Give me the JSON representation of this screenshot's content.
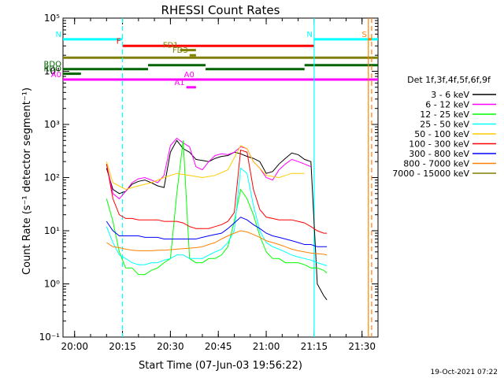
{
  "chart_data": {
    "type": "line",
    "title": "RHESSI Count Rates",
    "xlabel": "Start Time (07-Jun-03 19:56:22)",
    "ylabel": "Count Rate (s⁻¹ detector segment⁻¹)",
    "yscale": "log",
    "xlim": [
      "19:56:22",
      "21:35:00"
    ],
    "ylim": [
      0.1,
      100000
    ],
    "x_ticks": [
      "20:00",
      "20:15",
      "20:30",
      "20:45",
      "21:00",
      "21:15",
      "21:30"
    ],
    "y_ticks": [
      "10⁻¹",
      "10⁰",
      "10¹",
      "10²",
      "10³",
      "10⁴",
      "10⁵"
    ],
    "legend_title": "Det 1f,3f,4f,5f,6f,9f",
    "legend_position": "right",
    "timestamp": "19-Oct-2021 07:22",
    "series": [
      {
        "name": "3 - 6 keV",
        "color": "#000000",
        "x": [
          "20:10",
          "20:12",
          "20:14",
          "20:16",
          "20:18",
          "20:20",
          "20:22",
          "20:24",
          "20:26",
          "20:28",
          "20:30",
          "20:32",
          "20:34",
          "20:36",
          "20:38",
          "20:40",
          "20:42",
          "20:44",
          "20:46",
          "20:48",
          "20:50",
          "20:52",
          "20:54",
          "20:56",
          "20:58",
          "21:00",
          "21:02",
          "21:04",
          "21:06",
          "21:08",
          "21:10",
          "21:12",
          "21:14",
          "21:16",
          "21:18",
          "21:19"
        ],
        "values": [
          150,
          60,
          50,
          55,
          75,
          85,
          90,
          80,
          70,
          65,
          300,
          500,
          350,
          300,
          220,
          210,
          200,
          230,
          250,
          260,
          300,
          280,
          250,
          230,
          200,
          120,
          130,
          180,
          230,
          290,
          270,
          220,
          200,
          1.0,
          0.6,
          0.5
        ]
      },
      {
        "name": "6 - 12 keV",
        "color": "#ff00ff",
        "x": [
          "20:10",
          "20:12",
          "20:14",
          "20:16",
          "20:18",
          "20:20",
          "20:22",
          "20:24",
          "20:26",
          "20:28",
          "20:30",
          "20:32",
          "20:34",
          "20:36",
          "20:38",
          "20:40",
          "20:42",
          "20:44",
          "20:46",
          "20:48",
          "20:50",
          "20:52",
          "20:54",
          "20:56",
          "20:58",
          "21:00",
          "21:02",
          "21:04",
          "21:06",
          "21:08",
          "21:10",
          "21:12",
          "21:14"
        ],
        "values": [
          180,
          50,
          40,
          55,
          80,
          95,
          100,
          90,
          80,
          110,
          400,
          550,
          450,
          380,
          160,
          140,
          200,
          260,
          280,
          270,
          300,
          380,
          350,
          200,
          150,
          100,
          90,
          140,
          180,
          220,
          200,
          180,
          160
        ]
      },
      {
        "name": "12 - 25 keV",
        "color": "#00ff00",
        "x": [
          "20:10",
          "20:12",
          "20:14",
          "20:16",
          "20:18",
          "20:20",
          "20:22",
          "20:24",
          "20:26",
          "20:28",
          "20:30",
          "20:32",
          "20:34",
          "20:36",
          "20:38",
          "20:40",
          "20:42",
          "20:44",
          "20:46",
          "20:48",
          "20:50",
          "20:52",
          "20:54",
          "20:56",
          "20:58",
          "21:00",
          "21:02",
          "21:04",
          "21:06",
          "21:08",
          "21:10",
          "21:12",
          "21:14",
          "21:16",
          "21:18",
          "21:19"
        ],
        "values": [
          40,
          15,
          4,
          2,
          2,
          1.5,
          1.5,
          1.8,
          2,
          2.5,
          3,
          50,
          500,
          3,
          2.5,
          2.5,
          3,
          3,
          3.5,
          5,
          15,
          60,
          40,
          20,
          8,
          4,
          3,
          3,
          2.5,
          2.5,
          2.5,
          2.3,
          2,
          2,
          1.8,
          1.6
        ]
      },
      {
        "name": "25 - 50 keV",
        "color": "#00ffff",
        "x": [
          "20:10",
          "20:12",
          "20:14",
          "20:16",
          "20:18",
          "20:20",
          "20:22",
          "20:24",
          "20:26",
          "20:28",
          "20:30",
          "20:32",
          "20:34",
          "20:36",
          "20:38",
          "20:40",
          "20:42",
          "20:44",
          "20:46",
          "20:48",
          "20:50",
          "20:52",
          "20:54",
          "20:56",
          "20:58",
          "21:00",
          "21:02",
          "21:04",
          "21:06",
          "21:08",
          "21:10",
          "21:12",
          "21:14",
          "21:16",
          "21:18",
          "21:19"
        ],
        "values": [
          12,
          6,
          3.5,
          3,
          2.5,
          2.3,
          2.3,
          2.5,
          2.5,
          2.8,
          3,
          3.5,
          3.5,
          3,
          3,
          3,
          3.5,
          4,
          4.5,
          6,
          10,
          150,
          120,
          30,
          10,
          6,
          5,
          4.5,
          4,
          3.5,
          3.2,
          3,
          2.8,
          2.5,
          2.3,
          2.2
        ]
      },
      {
        "name": "50 - 100 keV",
        "color": "#ffcc00",
        "x": [
          "20:10",
          "20:12",
          "20:16",
          "20:20",
          "20:24",
          "20:28",
          "20:32",
          "20:36",
          "20:40",
          "20:44",
          "20:48",
          "20:52",
          "20:54",
          "20:56",
          "20:58",
          "21:00",
          "21:04",
          "21:08",
          "21:12"
        ],
        "values": [
          200,
          80,
          60,
          70,
          80,
          100,
          120,
          110,
          100,
          110,
          140,
          400,
          350,
          200,
          150,
          110,
          100,
          120,
          120
        ]
      },
      {
        "name": "100 - 300 keV",
        "color": "#ff0000",
        "x": [
          "20:10",
          "20:12",
          "20:14",
          "20:16",
          "20:18",
          "20:20",
          "20:22",
          "20:24",
          "20:26",
          "20:28",
          "20:30",
          "20:32",
          "20:34",
          "20:36",
          "20:38",
          "20:40",
          "20:42",
          "20:44",
          "20:46",
          "20:48",
          "20:50",
          "20:52",
          "20:54",
          "20:56",
          "20:58",
          "21:00",
          "21:02",
          "21:04",
          "21:06",
          "21:08",
          "21:10",
          "21:12",
          "21:14",
          "21:16",
          "21:18",
          "21:19"
        ],
        "values": [
          180,
          40,
          20,
          17,
          17,
          16,
          16,
          16,
          16,
          15,
          15,
          15,
          14,
          12,
          11,
          11,
          11,
          12,
          13,
          15,
          22,
          330,
          300,
          60,
          25,
          18,
          17,
          16,
          16,
          16,
          15,
          14,
          12,
          10,
          9,
          9
        ]
      },
      {
        "name": "300 - 800 keV",
        "color": "#0000ff",
        "x": [
          "20:10",
          "20:12",
          "20:14",
          "20:16",
          "20:18",
          "20:20",
          "20:22",
          "20:24",
          "20:26",
          "20:28",
          "20:30",
          "20:32",
          "20:34",
          "20:36",
          "20:38",
          "20:40",
          "20:42",
          "20:44",
          "20:46",
          "20:48",
          "20:50",
          "20:52",
          "20:54",
          "20:56",
          "20:58",
          "21:00",
          "21:02",
          "21:04",
          "21:06",
          "21:08",
          "21:10",
          "21:12",
          "21:14",
          "21:16",
          "21:18",
          "21:19"
        ],
        "values": [
          15,
          10,
          8,
          8,
          8,
          8,
          7.5,
          7.5,
          7.5,
          7,
          7,
          7,
          7,
          7,
          7,
          7.5,
          8,
          8.5,
          9,
          11,
          14,
          18,
          16,
          13,
          11,
          9,
          8,
          7.5,
          7,
          6.5,
          6,
          5.5,
          5.5,
          5,
          5,
          5
        ]
      },
      {
        "name": "800 - 7000 keV",
        "color": "#ff8000",
        "x": [
          "20:10",
          "20:12",
          "20:14",
          "20:16",
          "20:18",
          "20:20",
          "20:22",
          "20:24",
          "20:26",
          "20:28",
          "20:30",
          "20:32",
          "20:34",
          "20:36",
          "20:38",
          "20:40",
          "20:42",
          "20:44",
          "20:46",
          "20:48",
          "20:50",
          "20:52",
          "20:54",
          "20:56",
          "20:58",
          "21:00",
          "21:02",
          "21:04",
          "21:06",
          "21:08",
          "21:10",
          "21:12",
          "21:14",
          "21:16",
          "21:18",
          "21:19"
        ],
        "values": [
          6,
          5,
          4.8,
          4.5,
          4.3,
          4.2,
          4.2,
          4.2,
          4.3,
          4.3,
          4.4,
          4.5,
          4.6,
          4.7,
          4.8,
          5,
          5.5,
          6,
          7,
          8,
          9,
          10,
          9.5,
          8.5,
          7.5,
          6.5,
          6,
          5.5,
          5,
          4.5,
          4.2,
          4,
          3.8,
          3.7,
          3.6,
          3.5
        ]
      },
      {
        "name": "7000 - 15000 keV",
        "color": "#808000",
        "x": [],
        "values": []
      }
    ],
    "attenuator_bars": [
      {
        "label": "N",
        "color": "#00ffff",
        "x": [
          "19:56:22",
          "20:15"
        ],
        "y": 40000
      },
      {
        "label": "N",
        "color": "#00ffff",
        "x": [
          "21:15",
          "21:35"
        ],
        "y": 40000
      },
      {
        "label": "F",
        "color": "#ff0000",
        "x": [
          "20:15",
          "21:15"
        ],
        "y": 30000
      },
      {
        "label": "S",
        "color": "#ff8000",
        "x": [
          "21:32",
          "21:33"
        ],
        "y": 40000
      },
      {
        "label": "FD1",
        "color": "#808000",
        "x": [
          "20:33",
          "20:38"
        ],
        "y": 25000
      },
      {
        "label": "FD3",
        "color": "#808000",
        "x": [
          "20:36",
          "20:38"
        ],
        "y": 20000
      },
      {
        "label": "",
        "color": "#808000",
        "x": [
          "19:56:22",
          "21:35"
        ],
        "y": 18000
      },
      {
        "label": "RDO",
        "color": "#006400",
        "x": [
          "19:56:22",
          "20:23"
        ],
        "y": 11000
      },
      {
        "label": "",
        "color": "#006400",
        "x": [
          "20:23",
          "20:41"
        ],
        "y": 13000
      },
      {
        "label": "",
        "color": "#006400",
        "x": [
          "20:41",
          "21:12"
        ],
        "y": 11000
      },
      {
        "label": "",
        "color": "#006400",
        "x": [
          "21:12",
          "21:35"
        ],
        "y": 13000
      },
      {
        "label": "RDO",
        "color": "#006400",
        "x": [
          "19:56:22",
          "20:02"
        ],
        "y": 9000
      },
      {
        "label": "A0",
        "color": "#ff00ff",
        "x": [
          "19:56:22",
          "21:35"
        ],
        "y": 7000
      },
      {
        "label": "A1",
        "color": "#ff00ff",
        "x": [
          "20:35",
          "20:38"
        ],
        "y": 5000
      },
      {
        "label": "A0",
        "color": "#ff00ff",
        "x": [
          "20:38",
          "20:40"
        ],
        "y": 7000
      }
    ]
  }
}
